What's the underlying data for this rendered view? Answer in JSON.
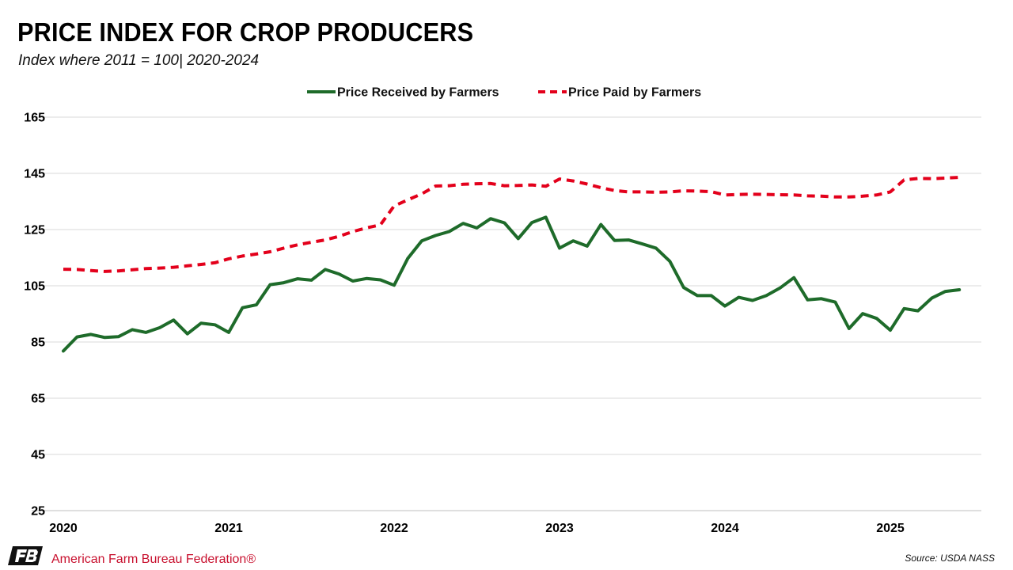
{
  "header": {
    "title": "PRICE INDEX FOR CROP PRODUCERS",
    "subtitle": "Index where 2011 = 100| 2020-2024"
  },
  "footer": {
    "org_name": "American Farm Bureau Federation®",
    "source": "Source: USDA NASS"
  },
  "colors": {
    "received": "#1e6b2a",
    "paid": "#e3001b",
    "grid": "#d9d9d9",
    "brand": "#c8102e"
  },
  "icons": {
    "logo": "afbf-logo-icon"
  },
  "chart_data": {
    "type": "line",
    "ylim": [
      25,
      165
    ],
    "yticks": [
      25,
      45,
      65,
      85,
      105,
      125,
      145,
      165
    ],
    "xlim": [
      2020,
      2025.55
    ],
    "xticks": [
      2020,
      2021,
      2022,
      2023,
      2024,
      2025
    ],
    "xtick_labels": [
      "2020",
      "2021",
      "2022",
      "2023",
      "2024",
      "2025"
    ],
    "grid": true,
    "legend_position": "top-center",
    "series": [
      {
        "name": "Price Received by Farmers",
        "color": "#1e6b2a",
        "style": "solid",
        "x": [
          2020.0,
          2020.083,
          2020.167,
          2020.25,
          2020.333,
          2020.417,
          2020.5,
          2020.583,
          2020.667,
          2020.75,
          2020.833,
          2020.917,
          2021.0,
          2021.083,
          2021.167,
          2021.25,
          2021.333,
          2021.417,
          2021.5,
          2021.583,
          2021.667,
          2021.75,
          2021.833,
          2021.917,
          2022.0,
          2022.083,
          2022.167,
          2022.25,
          2022.333,
          2022.417,
          2022.5,
          2022.583,
          2022.667,
          2022.75,
          2022.833,
          2022.917,
          2023.0,
          2023.083,
          2023.167,
          2023.25,
          2023.333,
          2023.417,
          2023.5,
          2023.583,
          2023.667,
          2023.75,
          2023.833,
          2023.917,
          2024.0,
          2024.083,
          2024.167,
          2024.25,
          2024.333,
          2024.417,
          2024.5,
          2024.583,
          2024.667,
          2024.75,
          2024.833,
          2024.917,
          2025.0,
          2025.083,
          2025.167,
          2025.25,
          2025.333,
          2025.417
        ],
        "y": [
          81.8,
          86.8,
          87.7,
          86.6,
          86.9,
          89.4,
          88.4,
          90.1,
          92.8,
          87.9,
          91.7,
          91.1,
          88.4,
          97.2,
          98.2,
          105.4,
          106.1,
          107.5,
          107.0,
          110.8,
          109.2,
          106.7,
          107.6,
          107.1,
          105.2,
          114.8,
          121.0,
          122.9,
          124.3,
          127.2,
          125.6,
          128.9,
          127.4,
          121.8,
          127.5,
          129.4,
          118.4,
          121.0,
          119.1,
          126.8,
          121.1,
          121.3,
          119.9,
          118.4,
          113.7,
          104.4,
          101.5,
          101.5,
          97.8,
          100.9,
          99.8,
          101.5,
          104.2,
          107.9,
          100.0,
          100.4,
          99.2,
          89.8,
          95.1,
          93.4,
          89.2,
          96.9,
          96.1,
          100.6,
          103.0,
          103.6
        ]
      },
      {
        "name": "Price Paid by Farmers",
        "color": "#e3001b",
        "style": "dashed",
        "x": [
          2020.0,
          2020.083,
          2020.167,
          2020.25,
          2020.333,
          2020.417,
          2020.5,
          2020.583,
          2020.667,
          2020.75,
          2020.833,
          2020.917,
          2021.0,
          2021.083,
          2021.167,
          2021.25,
          2021.333,
          2021.417,
          2021.5,
          2021.583,
          2021.667,
          2021.75,
          2021.833,
          2021.917,
          2022.0,
          2022.083,
          2022.167,
          2022.25,
          2022.333,
          2022.417,
          2022.5,
          2022.583,
          2022.667,
          2022.75,
          2022.833,
          2022.917,
          2023.0,
          2023.083,
          2023.167,
          2023.25,
          2023.333,
          2023.417,
          2023.5,
          2023.583,
          2023.667,
          2023.75,
          2023.833,
          2023.917,
          2024.0,
          2024.083,
          2024.167,
          2024.25,
          2024.333,
          2024.417,
          2024.5,
          2024.583,
          2024.667,
          2024.75,
          2024.833,
          2024.917,
          2025.0,
          2025.083,
          2025.167,
          2025.25,
          2025.333,
          2025.417
        ],
        "y": [
          110.9,
          110.8,
          110.4,
          110.1,
          110.3,
          110.7,
          111.1,
          111.3,
          111.6,
          112.1,
          112.6,
          113.2,
          114.6,
          115.6,
          116.3,
          117.1,
          118.4,
          119.6,
          120.5,
          121.3,
          122.6,
          124.3,
          125.6,
          126.7,
          133.4,
          135.6,
          137.7,
          140.5,
          140.6,
          141.1,
          141.3,
          141.4,
          140.6,
          140.7,
          140.9,
          140.4,
          143.0,
          142.3,
          141.2,
          139.9,
          138.9,
          138.4,
          138.4,
          138.3,
          138.4,
          138.8,
          138.7,
          138.5,
          137.3,
          137.5,
          137.6,
          137.5,
          137.4,
          137.3,
          137.0,
          136.9,
          136.6,
          136.6,
          136.9,
          137.3,
          138.4,
          142.7,
          143.2,
          143.1,
          143.3,
          143.6
        ]
      }
    ]
  }
}
